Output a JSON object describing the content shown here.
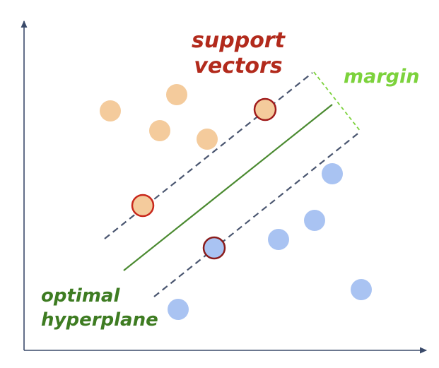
{
  "labels": {
    "support_vectors_line1": "support",
    "support_vectors_line2": "vectors",
    "margin": "margin",
    "hyperplane_line1": "optimal",
    "hyperplane_line2": "hyperplane"
  },
  "colors": {
    "support_vectors_text": "#b22a1c",
    "margin_text": "#7cd23c",
    "hyperplane_text": "#3e7c22",
    "hyperplane_line": "#4a8a30",
    "margin_lines": "#4a5670",
    "margin_indicator": "#7cd23c",
    "class_a_fill": "#f4cb9c",
    "class_b_fill": "#a9c3f2",
    "support_vector_ring": "#a01c1c",
    "axes": "#3a4a6a"
  },
  "classes": {
    "class_a": "orange points",
    "class_b": "blue points"
  }
}
